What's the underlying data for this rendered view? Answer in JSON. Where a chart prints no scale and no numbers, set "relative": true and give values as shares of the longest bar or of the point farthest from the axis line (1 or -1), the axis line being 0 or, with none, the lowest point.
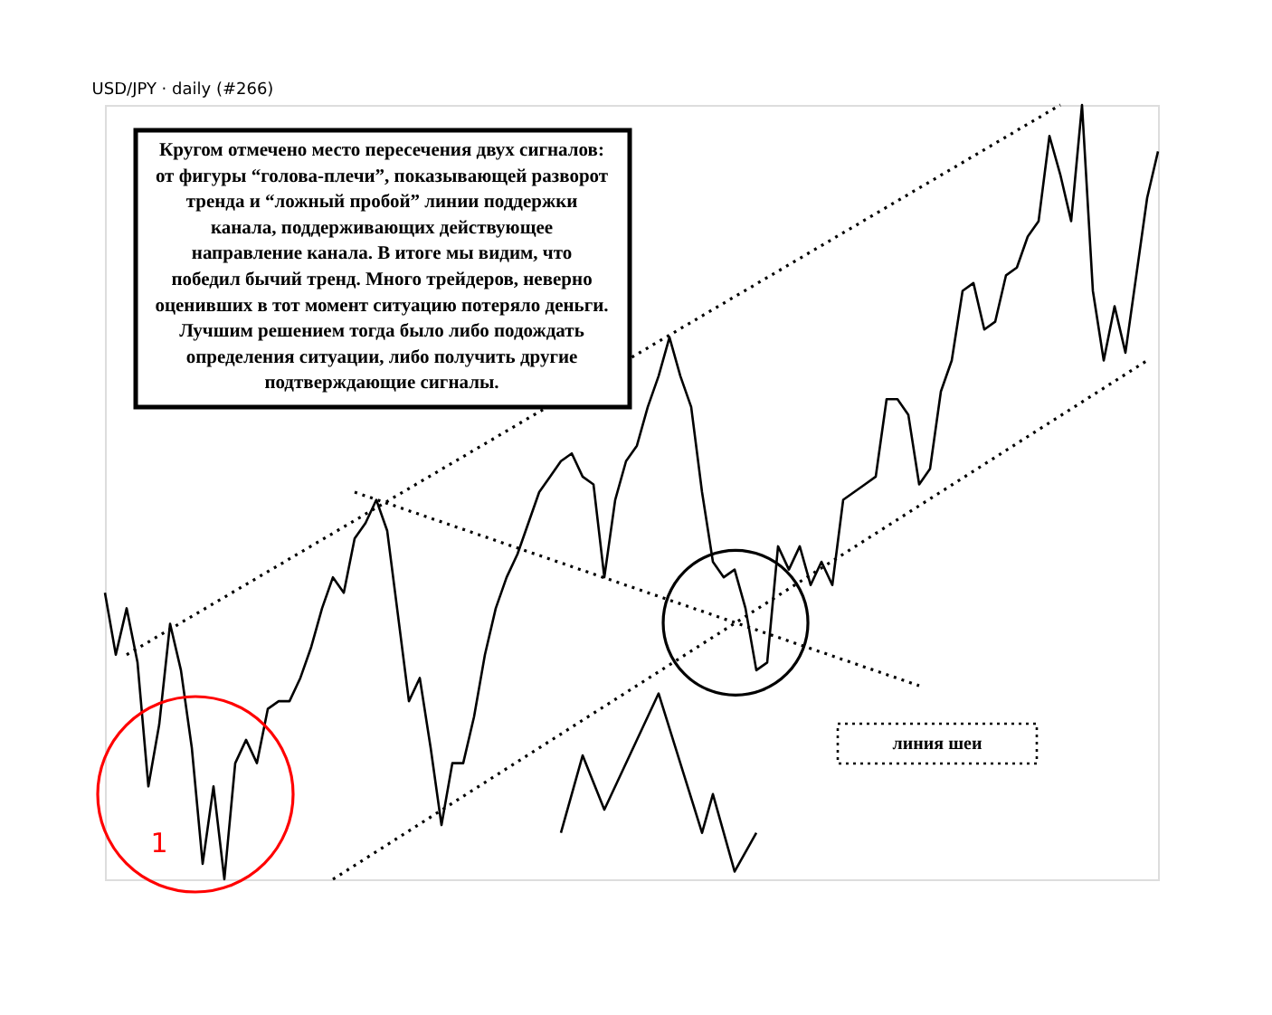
{
  "chart_data": {
    "type": "line",
    "title": "USD/JPY · daily (#266)",
    "relative": true,
    "categories": [
      null,
      null,
      null,
      null,
      null,
      null,
      null,
      null,
      null,
      null,
      null,
      null,
      null,
      null,
      null,
      null,
      null,
      null,
      null,
      null,
      null,
      null,
      null,
      null,
      null,
      null,
      null,
      null,
      null,
      null,
      null,
      null,
      null,
      null,
      null,
      null,
      null,
      null,
      null,
      null,
      null,
      null,
      null,
      null,
      null,
      null,
      null,
      null,
      null,
      null,
      null,
      null,
      null,
      null,
      null,
      null,
      null,
      null,
      null,
      null,
      null,
      null,
      null,
      null,
      null,
      null,
      null,
      null,
      null,
      null,
      null,
      null,
      null,
      null,
      null,
      null,
      null,
      null,
      null,
      null,
      null,
      null,
      null,
      null,
      null,
      null,
      null,
      null,
      null,
      null,
      null,
      null,
      null,
      null,
      null,
      null,
      null,
      null
    ],
    "series": [
      {
        "color": "#000000",
        "line_style": "solid",
        "values": [
          0.37,
          0.29,
          0.35,
          0.28,
          0.12,
          0.2,
          0.33,
          0.27,
          0.17,
          0.02,
          0.12,
          0,
          0.15,
          0.18,
          0.15,
          0.22,
          0.23,
          0.23,
          0.26,
          0.3,
          0.35,
          0.39,
          0.37,
          0.44,
          0.46,
          0.49,
          0.45,
          0.34,
          0.23,
          0.26,
          0.17,
          0.07,
          0.15,
          0.15,
          0.21,
          0.29,
          0.35,
          0.39,
          0.42,
          0.46,
          0.5,
          0.52,
          0.54,
          0.55,
          0.52,
          0.51,
          0.39,
          0.49,
          0.54,
          0.56,
          0.61,
          0.65,
          0.7,
          0.65,
          0.61,
          0.5,
          0.41,
          0.39,
          0.4,
          0.35,
          0.27,
          0.28,
          0.43,
          0.4,
          0.43,
          0.38,
          0.41,
          0.38,
          0.49,
          0.5,
          0.51,
          0.52,
          0.62,
          0.62,
          0.6,
          0.51,
          0.53,
          0.63,
          0.67,
          0.76,
          0.77,
          0.71,
          0.72,
          0.78,
          0.79,
          0.83,
          0.85,
          0.96,
          0.91,
          0.85,
          1,
          0.76,
          0.67,
          0.74,
          0.68,
          0.78,
          0.88,
          0.94
        ]
      },
      {
        "color": "#000000",
        "line_style": "dotted",
        "values": [
          null,
          null,
          0.29,
          null,
          null,
          null,
          null,
          null,
          null,
          null,
          null,
          null,
          null,
          null,
          null,
          null,
          null,
          null,
          null,
          null,
          null,
          null,
          null,
          null,
          null,
          null,
          null,
          null,
          null,
          null,
          null,
          null,
          null,
          null,
          null,
          null,
          null,
          null,
          null,
          null,
          null,
          null,
          null,
          null,
          null,
          null,
          null,
          null,
          null,
          null,
          null,
          null,
          null,
          null,
          null,
          null,
          null,
          null,
          null,
          null,
          null,
          null,
          null,
          null,
          null,
          null,
          null,
          null,
          null,
          null,
          null,
          null,
          null,
          null,
          null,
          null,
          null,
          null,
          null,
          null,
          null,
          null,
          null,
          null,
          null,
          null,
          null,
          null,
          1.0,
          null,
          null,
          null,
          null,
          null,
          null,
          null,
          null,
          null
        ]
      },
      {
        "color": "#000000",
        "line_style": "dotted",
        "values": [
          null,
          null,
          null,
          null,
          null,
          null,
          null,
          null,
          null,
          null,
          null,
          null,
          null,
          null,
          null,
          null,
          null,
          null,
          null,
          null,
          null,
          0,
          null,
          null,
          null,
          null,
          null,
          null,
          null,
          null,
          null,
          null,
          null,
          null,
          null,
          null,
          null,
          null,
          null,
          null,
          null,
          null,
          null,
          null,
          null,
          null,
          null,
          null,
          null,
          null,
          null,
          null,
          null,
          null,
          null,
          null,
          null,
          null,
          null,
          null,
          null,
          null,
          null,
          null,
          null,
          null,
          null,
          null,
          null,
          null,
          null,
          null,
          null,
          null,
          null,
          null,
          null,
          null,
          null,
          null,
          null,
          null,
          null,
          null,
          null,
          null,
          null,
          null,
          null,
          null,
          null,
          null,
          null,
          null,
          null,
          null,
          0.67,
          null
        ]
      },
      {
        "color": "#000000",
        "line_style": "dotted",
        "values": [
          null,
          null,
          null,
          null,
          null,
          null,
          null,
          null,
          null,
          null,
          null,
          null,
          null,
          null,
          null,
          null,
          null,
          null,
          null,
          null,
          null,
          null,
          null,
          0.5,
          null,
          null,
          null,
          null,
          null,
          null,
          null,
          null,
          null,
          null,
          null,
          null,
          null,
          null,
          null,
          null,
          null,
          null,
          null,
          null,
          null,
          null,
          null,
          null,
          null,
          null,
          null,
          null,
          null,
          null,
          null,
          null,
          null,
          null,
          null,
          null,
          null,
          null,
          null,
          null,
          null,
          null,
          null,
          null,
          null,
          null,
          null,
          null,
          null,
          null,
          null,
          0.25,
          null,
          null,
          null,
          null,
          null,
          null,
          null,
          null,
          null,
          null,
          null,
          null,
          null,
          null,
          null,
          null,
          null,
          null,
          null,
          null,
          null,
          null
        ]
      },
      {
        "color": "#000000",
        "line_style": "solid",
        "values": [
          null,
          null,
          null,
          null,
          null,
          null,
          null,
          null,
          null,
          null,
          null,
          null,
          null,
          null,
          null,
          null,
          null,
          null,
          null,
          null,
          null,
          null,
          null,
          null,
          null,
          null,
          null,
          null,
          null,
          null,
          null,
          null,
          null,
          null,
          null,
          null,
          null,
          null,
          null,
          null,
          null,
          null,
          0.06,
          null,
          0.16,
          null,
          0.09,
          null,
          null,
          null,
          null,
          0.24,
          null,
          null,
          null,
          0.06,
          0.11,
          null,
          0.01,
          null,
          0.06,
          null,
          null,
          null,
          null,
          null,
          null,
          null,
          null,
          null,
          null,
          null,
          null,
          null,
          null,
          null,
          null,
          null,
          null,
          null,
          null,
          null,
          null,
          null,
          null,
          null,
          null,
          null,
          null,
          null,
          null,
          null,
          null,
          null,
          null,
          null,
          null,
          null
        ]
      }
    ],
    "annotations": [
      "Кругом отмечено место пересечения двух сигналов:\nот фигуры “голова-плечи”, показывающей разворот\nтренда и “ложный пробой” линии поддержки\nканала, поддерживающих действующее\nнаправление канала. В итоге мы видим, что\nпобедил бычий тренд. Много трейдеров, неверно\nоценивших в тот момент ситуацию потеряло деньги.\nЛучшим решением тогда было либо подождать\nопределения ситуации, либо получить другие\nподтверждающие сигналы.",
      "линия шеи",
      "1"
    ]
  }
}
